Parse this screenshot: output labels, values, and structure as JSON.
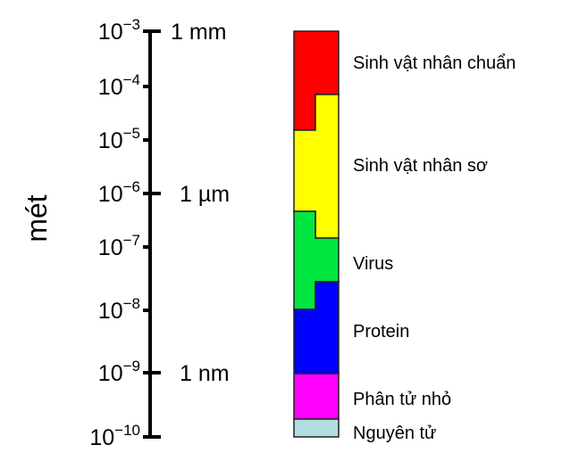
{
  "axis_title": "mét",
  "ticks": [
    {
      "base": "10",
      "exp": "−3",
      "unit": "1 mm"
    },
    {
      "base": "10",
      "exp": "−4",
      "unit": ""
    },
    {
      "base": "10",
      "exp": "−5",
      "unit": ""
    },
    {
      "base": "10",
      "exp": "−6",
      "unit": "1 µm"
    },
    {
      "base": "10",
      "exp": "−7",
      "unit": ""
    },
    {
      "base": "10",
      "exp": "−8",
      "unit": ""
    },
    {
      "base": "10",
      "exp": "−9",
      "unit": "1 nm"
    },
    {
      "base": "10",
      "exp": "−10",
      "unit": ""
    }
  ],
  "categories": [
    {
      "label": "Sinh vật nhân chuẩn",
      "color": "#ff0000"
    },
    {
      "label": "Sinh vật nhân sơ",
      "color": "#ffff00"
    },
    {
      "label": "Virus",
      "color": "#00e640"
    },
    {
      "label": "Protein",
      "color": "#0000ff"
    },
    {
      "label": "Phân tử nhỏ",
      "color": "#ff00ff"
    },
    {
      "label": "Nguyên tử",
      "color": "#b0dde0"
    }
  ]
}
